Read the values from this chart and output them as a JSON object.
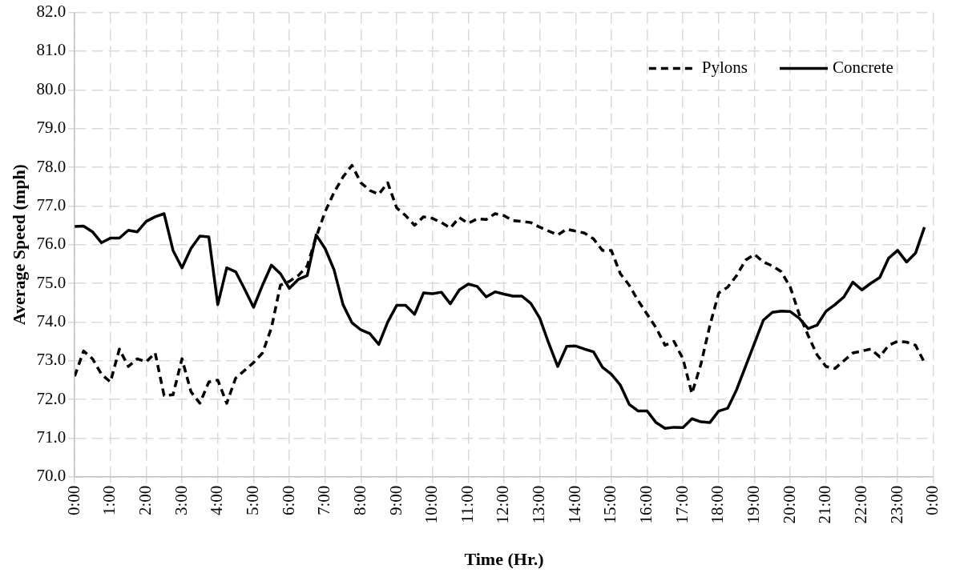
{
  "chart_data": {
    "type": "line",
    "xlabel": "Time (Hr.)",
    "ylabel": "Average Speed (mph)",
    "x": [
      0,
      0.25,
      0.5,
      0.75,
      1,
      1.25,
      1.5,
      1.75,
      2,
      2.25,
      2.5,
      2.75,
      3,
      3.25,
      3.5,
      3.75,
      4,
      4.25,
      4.5,
      4.75,
      5,
      5.25,
      5.5,
      5.75,
      6,
      6.25,
      6.5,
      6.75,
      7,
      7.25,
      7.5,
      7.75,
      8,
      8.25,
      8.5,
      8.75,
      9,
      9.25,
      9.5,
      9.75,
      10,
      10.25,
      10.5,
      10.75,
      11,
      11.25,
      11.5,
      11.75,
      12,
      12.25,
      12.5,
      12.75,
      13,
      13.25,
      13.5,
      13.75,
      14,
      14.25,
      14.5,
      14.75,
      15,
      15.25,
      15.5,
      15.75,
      16,
      16.25,
      16.5,
      16.75,
      17,
      17.25,
      17.5,
      17.75,
      18,
      18.25,
      18.5,
      18.75,
      19,
      19.25,
      19.5,
      19.75,
      20,
      20.25,
      20.5,
      20.75,
      21,
      21.25,
      21.5,
      21.75,
      22,
      22.25,
      22.5,
      22.75,
      23,
      23.25,
      23.5,
      23.75
    ],
    "series": [
      {
        "name": "Pylons",
        "color": "#000000",
        "line_style": "dashed",
        "values": [
          72.6,
          73.25,
          73.05,
          72.65,
          72.45,
          73.3,
          72.85,
          73.05,
          72.97,
          73.2,
          72.1,
          72.12,
          73.05,
          72.2,
          71.9,
          72.45,
          72.5,
          71.9,
          72.55,
          72.75,
          72.95,
          73.2,
          73.85,
          74.95,
          75.05,
          75.2,
          75.45,
          76.2,
          76.85,
          77.35,
          77.75,
          78.05,
          77.6,
          77.4,
          77.3,
          77.6,
          76.95,
          76.75,
          76.5,
          76.72,
          76.68,
          76.57,
          76.43,
          76.7,
          76.55,
          76.67,
          76.65,
          76.8,
          76.75,
          76.62,
          76.6,
          76.57,
          76.45,
          76.35,
          76.25,
          76.4,
          76.35,
          76.3,
          76.15,
          75.85,
          75.85,
          75.25,
          74.95,
          74.55,
          74.2,
          73.85,
          73.4,
          73.5,
          73.05,
          72.15,
          72.9,
          73.9,
          74.75,
          74.9,
          75.2,
          75.6,
          75.75,
          75.55,
          75.45,
          75.3,
          74.9,
          74.2,
          73.65,
          73.15,
          72.85,
          72.8,
          73.0,
          73.2,
          73.25,
          73.3,
          73.1,
          73.4,
          73.5,
          73.48,
          73.4,
          72.95
        ]
      },
      {
        "name": "Concrete",
        "color": "#000000",
        "line_style": "solid",
        "values": [
          76.47,
          76.48,
          76.33,
          76.05,
          76.17,
          76.17,
          76.37,
          76.33,
          76.6,
          76.72,
          76.8,
          75.85,
          75.4,
          75.9,
          76.22,
          76.2,
          74.45,
          75.4,
          75.3,
          74.85,
          74.38,
          74.95,
          75.47,
          75.25,
          74.87,
          75.1,
          75.2,
          76.25,
          75.9,
          75.35,
          74.45,
          73.98,
          73.8,
          73.7,
          73.42,
          74.0,
          74.43,
          74.43,
          74.2,
          74.75,
          74.73,
          74.77,
          74.47,
          74.83,
          74.98,
          74.92,
          74.65,
          74.78,
          74.72,
          74.67,
          74.67,
          74.48,
          74.1,
          73.45,
          72.85,
          73.37,
          73.38,
          73.3,
          73.23,
          72.83,
          72.65,
          72.37,
          71.87,
          71.7,
          71.7,
          71.4,
          71.25,
          71.28,
          71.27,
          71.5,
          71.42,
          71.4,
          71.7,
          71.77,
          72.25,
          72.85,
          73.45,
          74.05,
          74.25,
          74.28,
          74.27,
          74.1,
          73.83,
          73.92,
          74.28,
          74.45,
          74.65,
          75.03,
          74.83,
          75.0,
          75.15,
          75.65,
          75.85,
          75.55,
          75.78,
          76.45
        ]
      }
    ],
    "xlim": [
      0,
      24
    ],
    "xticks": [
      {
        "value": 0,
        "label": "0:00"
      },
      {
        "value": 1,
        "label": "1:00"
      },
      {
        "value": 2,
        "label": "2:00"
      },
      {
        "value": 3,
        "label": "3:00"
      },
      {
        "value": 4,
        "label": "4:00"
      },
      {
        "value": 5,
        "label": "5:00"
      },
      {
        "value": 6,
        "label": "6:00"
      },
      {
        "value": 7,
        "label": "7:00"
      },
      {
        "value": 8,
        "label": "8:00"
      },
      {
        "value": 9,
        "label": "9:00"
      },
      {
        "value": 10,
        "label": "10:00"
      },
      {
        "value": 11,
        "label": "11:00"
      },
      {
        "value": 12,
        "label": "12:00"
      },
      {
        "value": 13,
        "label": "13:00"
      },
      {
        "value": 14,
        "label": "14:00"
      },
      {
        "value": 15,
        "label": "15:00"
      },
      {
        "value": 16,
        "label": "16:00"
      },
      {
        "value": 17,
        "label": "17:00"
      },
      {
        "value": 18,
        "label": "18:00"
      },
      {
        "value": 19,
        "label": "19:00"
      },
      {
        "value": 20,
        "label": "20:00"
      },
      {
        "value": 21,
        "label": "21:00"
      },
      {
        "value": 22,
        "label": "22:00"
      },
      {
        "value": 23,
        "label": "23:00"
      },
      {
        "value": 24,
        "label": "0:00"
      }
    ],
    "ylim": [
      70,
      82
    ],
    "yticks": [
      {
        "value": 70,
        "label": "70.0"
      },
      {
        "value": 71,
        "label": "71.0"
      },
      {
        "value": 72,
        "label": "72.0"
      },
      {
        "value": 73,
        "label": "73.0"
      },
      {
        "value": 74,
        "label": "74.0"
      },
      {
        "value": 75,
        "label": "75.0"
      },
      {
        "value": 76,
        "label": "76.0"
      },
      {
        "value": 77,
        "label": "77.0"
      },
      {
        "value": 78,
        "label": "78.0"
      },
      {
        "value": 79,
        "label": "79.0"
      },
      {
        "value": 80,
        "label": "80.0"
      },
      {
        "value": 81,
        "label": "81.0"
      },
      {
        "value": 82,
        "label": "82.0"
      }
    ],
    "grid": true,
    "legend": "top right",
    "marker": "none"
  }
}
